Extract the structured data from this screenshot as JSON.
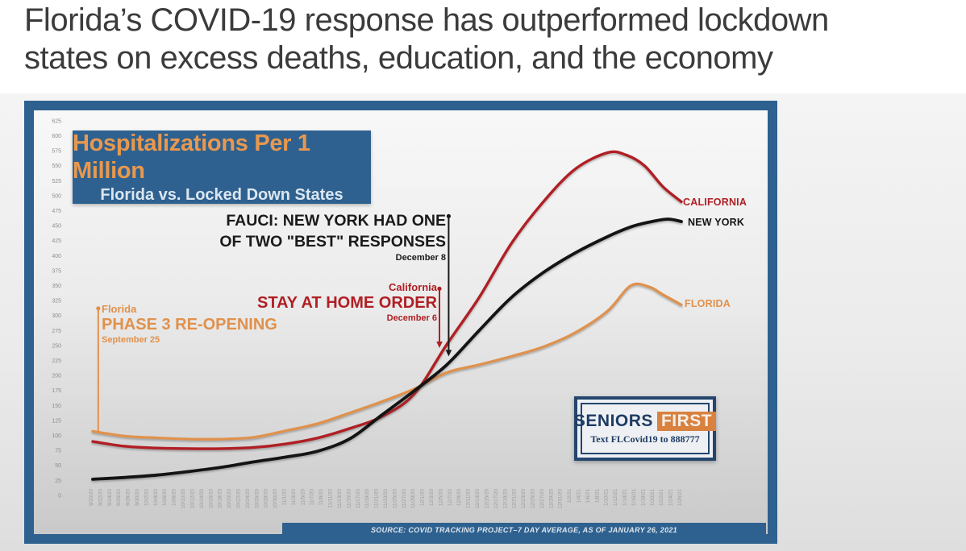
{
  "headline": {
    "line1": "Florida’s COVID-19 response has outperformed lockdown",
    "line2": "states on excess deaths, education, and the economy"
  },
  "logo": {
    "brand_left": "SENIORS",
    "brand_right": "FIRST",
    "tagline": "Text FLCovid19 to 888777"
  },
  "theme": {
    "frame_blue": "#2e618f",
    "title_orange": "#e8984e",
    "subtitle_white": "#dce6f0",
    "headline_gray": "#3b3b3b",
    "logo_navy": "#1e3c64",
    "logo_orange": "#d9813e"
  },
  "chart_data": {
    "type": "line",
    "title": "Hospitalizations Per 1 Million",
    "subtitle": "Florida vs. Locked Down States",
    "source": "SOURCE: COVID TRACKING PROJECT–7 DAY AVERAGE, AS OF JANUARY 26, 2021",
    "grid": false,
    "legend_position": "line-end-labels",
    "ylim": [
      0,
      625
    ],
    "ytick_step": 25,
    "x_axis_note": "x = days since 9/20/20; tick labels every 2 days",
    "x_dates": [
      "9/20/20",
      "9/22/20",
      "9/24/20",
      "9/26/20",
      "9/28/20",
      "9/30/20",
      "10/2/20",
      "10/4/20",
      "10/6/20",
      "10/8/20",
      "10/10/20",
      "10/12/20",
      "10/14/20",
      "10/16/20",
      "10/18/20",
      "10/20/20",
      "10/22/20",
      "10/24/20",
      "10/26/20",
      "10/28/20",
      "10/30/20",
      "11/1/20",
      "11/3/20",
      "11/5/20",
      "11/7/20",
      "11/9/20",
      "11/11/20",
      "11/13/20",
      "11/15/20",
      "11/17/20",
      "11/19/20",
      "11/21/20",
      "11/23/20",
      "11/25/20",
      "11/27/20",
      "11/29/20",
      "12/1/20",
      "12/3/20",
      "12/5/20",
      "12/7/20",
      "12/9/20",
      "12/11/20",
      "12/13/20",
      "12/15/20",
      "12/17/20",
      "12/19/20",
      "12/21/20",
      "12/23/20",
      "12/25/20",
      "12/27/20",
      "12/29/20",
      "12/31/20",
      "1/2/21",
      "1/4/21",
      "1/6/21",
      "1/8/21",
      "1/10/21",
      "1/12/21",
      "1/14/21",
      "1/16/21",
      "1/18/21",
      "1/20/21",
      "1/22/21",
      "1/24/21",
      "1/26/21"
    ],
    "series": [
      {
        "name": "FLORIDA",
        "color": "#e0914c",
        "stroke_width": 3.2,
        "points": [
          [
            0,
            107
          ],
          [
            7,
            99
          ],
          [
            14,
            96
          ],
          [
            21,
            94
          ],
          [
            28,
            94
          ],
          [
            35,
            97
          ],
          [
            42,
            108
          ],
          [
            49,
            120
          ],
          [
            56,
            138
          ],
          [
            63,
            157
          ],
          [
            70,
            178
          ],
          [
            77,
            205
          ],
          [
            84,
            218
          ],
          [
            91,
            232
          ],
          [
            98,
            248
          ],
          [
            105,
            272
          ],
          [
            112,
            308
          ],
          [
            117,
            350
          ],
          [
            121,
            348
          ],
          [
            124,
            335
          ],
          [
            128,
            318
          ]
        ]
      },
      {
        "name": "CALIFORNIA",
        "color": "#b01f24",
        "stroke_width": 3.4,
        "points": [
          [
            0,
            90
          ],
          [
            7,
            82
          ],
          [
            14,
            79
          ],
          [
            21,
            78
          ],
          [
            28,
            78
          ],
          [
            35,
            80
          ],
          [
            42,
            86
          ],
          [
            49,
            96
          ],
          [
            56,
            112
          ],
          [
            63,
            132
          ],
          [
            70,
            170
          ],
          [
            77,
            252
          ],
          [
            84,
            330
          ],
          [
            91,
            420
          ],
          [
            98,
            490
          ],
          [
            105,
            545
          ],
          [
            112,
            572
          ],
          [
            116,
            568
          ],
          [
            120,
            550
          ],
          [
            124,
            515
          ],
          [
            128,
            490
          ]
        ]
      },
      {
        "name": "NEW YORK",
        "color": "#141414",
        "stroke_width": 3.8,
        "points": [
          [
            0,
            27
          ],
          [
            7,
            30
          ],
          [
            14,
            34
          ],
          [
            21,
            40
          ],
          [
            28,
            47
          ],
          [
            35,
            56
          ],
          [
            42,
            64
          ],
          [
            49,
            74
          ],
          [
            56,
            95
          ],
          [
            63,
            135
          ],
          [
            70,
            175
          ],
          [
            77,
            218
          ],
          [
            84,
            275
          ],
          [
            91,
            330
          ],
          [
            98,
            372
          ],
          [
            105,
            405
          ],
          [
            112,
            432
          ],
          [
            117,
            448
          ],
          [
            121,
            456
          ],
          [
            125,
            461
          ],
          [
            128,
            457
          ]
        ]
      }
    ],
    "annotations": [
      {
        "name": "florida-phase3-reopening",
        "color": "#e0914c",
        "label_top": "Florida",
        "label_main": "PHASE 3 RE-OPENING",
        "label_date": "September 25",
        "day": 1.2,
        "value_top": 312,
        "value_bottom": 106,
        "arrow": false
      },
      {
        "name": "fauci-new-york",
        "color": "#1a1a1a",
        "label_main": "FAUCI: NEW YORK HAD ONE",
        "label_main2": "OF TWO \"BEST\" RESPONSES",
        "label_date": "December 8",
        "day": 77.4,
        "value_top": 466,
        "value_bottom": 232,
        "arrow": true
      },
      {
        "name": "california-stay-at-home",
        "color": "#b01f24",
        "label_top": "California",
        "label_main": "STAY AT HOME ORDER",
        "label_date": "December 6",
        "day": 75.4,
        "value_top": 345,
        "value_bottom": 246,
        "arrow": true
      }
    ]
  }
}
